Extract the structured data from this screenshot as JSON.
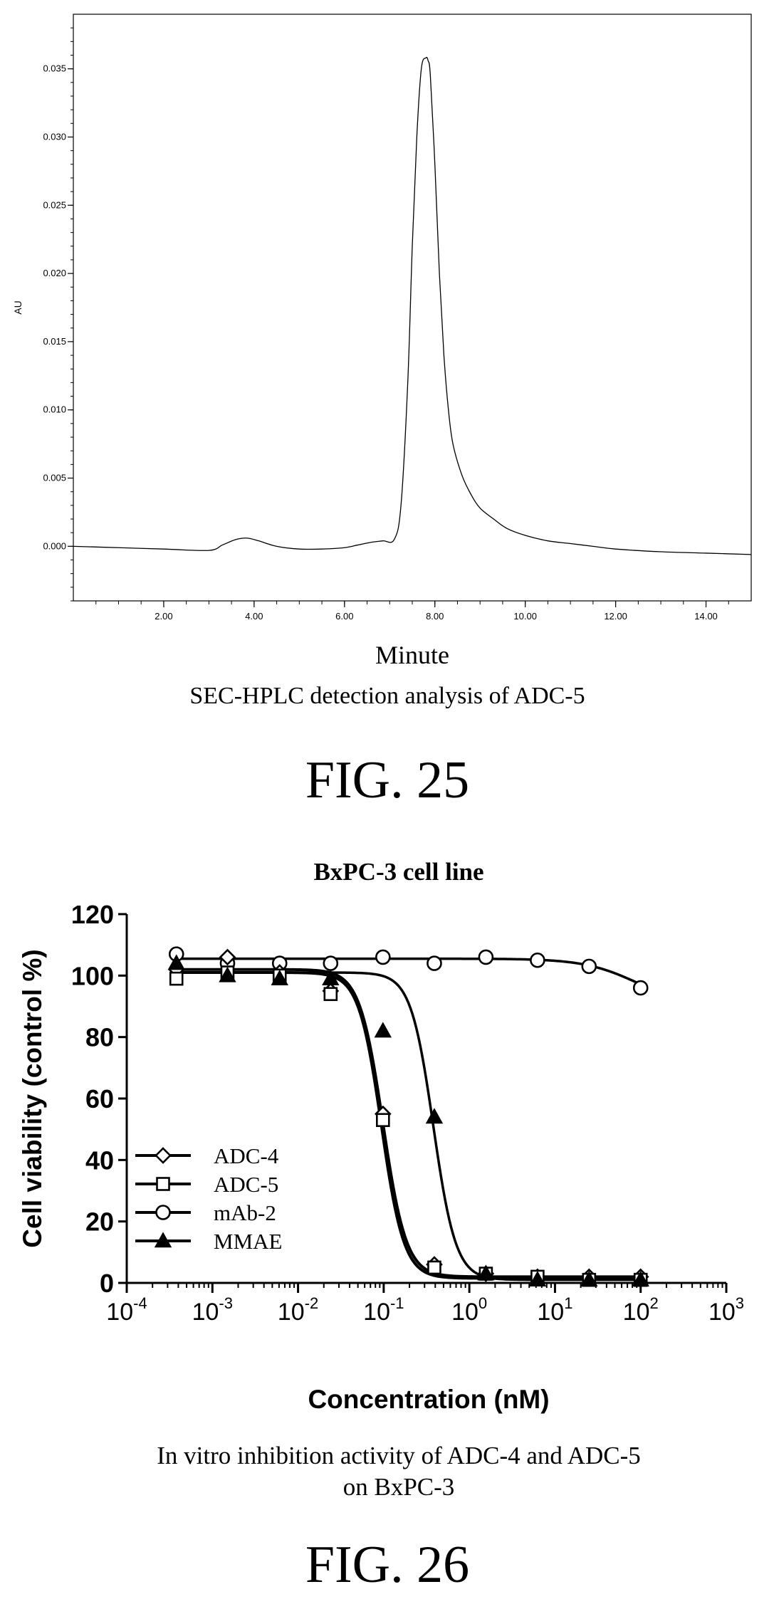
{
  "figures": [
    {
      "label": "FIG. 25",
      "caption": "SEC-HPLC detection analysis of ADC-5"
    },
    {
      "label": "FIG. 26",
      "caption_lines": [
        "In vitro inhibition activity of ADC-4 and ADC-5",
        "on BxPC-3"
      ]
    }
  ],
  "chart_data": [
    {
      "type": "line",
      "title": "",
      "xlabel": "Minute",
      "ylabel": "AU",
      "xlim": [
        0,
        15
      ],
      "ylim": [
        -0.004,
        0.039
      ],
      "xticks": [
        2,
        4,
        6,
        8,
        10,
        12,
        14
      ],
      "xtick_labels": [
        "2.00",
        "4.00",
        "6.00",
        "8.00",
        "10.00",
        "12.00",
        "14.00"
      ],
      "yticks": [
        0,
        0.005,
        0.01,
        0.015,
        0.02,
        0.025,
        0.03,
        0.035
      ],
      "ytick_labels": [
        "0.000",
        "0.005",
        "0.010",
        "0.015",
        "0.020",
        "0.025",
        "0.030",
        "0.035"
      ],
      "grid": false,
      "series": [
        {
          "x": [
            0,
            1,
            2,
            3,
            3.3,
            3.6,
            3.85,
            4.1,
            4.5,
            5,
            5.5,
            6,
            6.3,
            6.6,
            6.85,
            7.1,
            7.25,
            7.4,
            7.5,
            7.6,
            7.7,
            7.8,
            7.85,
            7.9,
            8.0,
            8.1,
            8.2,
            8.3,
            8.4,
            8.6,
            8.8,
            9.0,
            9.3,
            9.6,
            10,
            10.5,
            11,
            11.5,
            12,
            13,
            14,
            15
          ],
          "values": [
            0.0,
            -0.0001,
            -0.0002,
            -0.0003,
            0.0001,
            0.0005,
            0.0006,
            0.0004,
            0.0,
            -0.0002,
            -0.0002,
            -0.0001,
            0.0001,
            0.0003,
            0.0004,
            0.0005,
            0.003,
            0.012,
            0.022,
            0.03,
            0.035,
            0.0358,
            0.0356,
            0.0345,
            0.028,
            0.02,
            0.014,
            0.01,
            0.0075,
            0.0052,
            0.0038,
            0.0028,
            0.002,
            0.0013,
            0.0008,
            0.0004,
            0.0002,
            0.0,
            -0.0002,
            -0.0004,
            -0.0005,
            -0.0006
          ]
        }
      ]
    },
    {
      "type": "scatter",
      "title": "BxPC-3 cell line",
      "xlabel": "Concentration (nM)",
      "ylabel": "Cell viability (control %)",
      "x_scale": "log",
      "xlim": [
        0.0001,
        1000
      ],
      "ylim": [
        0,
        120
      ],
      "xtick_labels": [
        {
          "base": "10",
          "exp": "-4"
        },
        {
          "base": "10",
          "exp": "-3"
        },
        {
          "base": "10",
          "exp": "-2"
        },
        {
          "base": "10",
          "exp": "-1"
        },
        {
          "base": "10",
          "exp": "0"
        },
        {
          "base": "10",
          "exp": "1"
        },
        {
          "base": "10",
          "exp": "2"
        },
        {
          "base": "10",
          "exp": "3"
        }
      ],
      "yticks": [
        0,
        20,
        40,
        60,
        80,
        100,
        120
      ],
      "ytick_labels": [
        "0",
        "20",
        "40",
        "60",
        "80",
        "100",
        "120"
      ],
      "legend_position": "bottom-left",
      "grid": false,
      "series": [
        {
          "name": "ADC-4",
          "marker": "diamond-open",
          "x": [
            0.00038,
            0.0015,
            0.0061,
            0.024,
            0.098,
            0.39,
            1.56,
            6.25,
            25,
            100
          ],
          "values": [
            102,
            106,
            101,
            95,
            55,
            6,
            3,
            2,
            2,
            2
          ],
          "fit": {
            "top": 102,
            "bottom": 2,
            "ec50": 0.098,
            "hill": 3.2
          }
        },
        {
          "name": "ADC-5",
          "marker": "square-open",
          "x": [
            0.00038,
            0.0015,
            0.0061,
            0.024,
            0.098,
            0.39,
            1.56,
            6.25,
            25,
            100
          ],
          "values": [
            99,
            101,
            100,
            94,
            53,
            5,
            3,
            2,
            1,
            1
          ],
          "fit": {
            "top": 101,
            "bottom": 1.5,
            "ec50": 0.094,
            "hill": 3.3
          }
        },
        {
          "name": "mAb-2",
          "marker": "circle-open",
          "x": [
            0.00038,
            0.0015,
            0.0061,
            0.024,
            0.098,
            0.39,
            1.56,
            6.25,
            25,
            100
          ],
          "values": [
            107,
            104,
            104,
            104,
            106,
            104,
            106,
            105,
            103,
            96
          ],
          "fit": {
            "top": 105.5,
            "bottom": 90,
            "ec50": 90,
            "hill": 1.4
          }
        },
        {
          "name": "MMAE",
          "marker": "triangle-filled",
          "x": [
            0.00038,
            0.0015,
            0.0061,
            0.024,
            0.098,
            0.39,
            1.56,
            6.25,
            25,
            100
          ],
          "values": [
            104,
            100,
            99,
            99,
            82,
            54,
            3,
            1,
            1,
            1
          ],
          "fit": {
            "top": 101,
            "bottom": 1,
            "ec50": 0.38,
            "hill": 3.3
          }
        }
      ]
    }
  ]
}
